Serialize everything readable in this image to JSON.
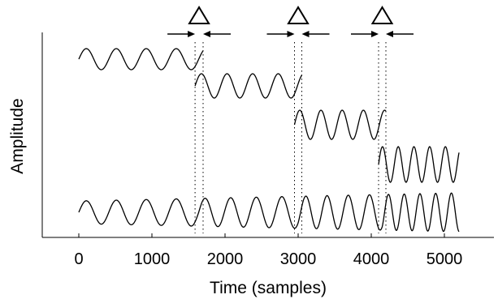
{
  "chart_data": {
    "type": "line",
    "xlabel": "Time (samples)",
    "ylabel": "Amplitude",
    "xlim": [
      -600,
      5700
    ],
    "x_ticks": [
      0,
      1000,
      2000,
      3000,
      4000,
      5000
    ],
    "x_tick_labels": [
      "0",
      "1000",
      "2000",
      "3000",
      "4000",
      "5000"
    ],
    "grid": false,
    "legend": "none",
    "series": [
      {
        "x_start": 0,
        "x_end": 1700,
        "period_samples": 410,
        "row": 1
      },
      {
        "x_start": 1590,
        "x_end": 3050,
        "period_samples": 350,
        "row": 2
      },
      {
        "x_start": 2950,
        "x_end": 4200,
        "period_samples": 290,
        "row": 3
      },
      {
        "x_start": 4100,
        "x_end": 5200,
        "period_samples": 215,
        "row": 4
      },
      {
        "x_start": 0,
        "x_end": 5200,
        "period_samples": "variable (concatenated)",
        "row": 5
      }
    ],
    "overlap_regions": [
      {
        "start": 1590,
        "end": 1700
      },
      {
        "start": 2950,
        "end": 3050
      },
      {
        "start": 4100,
        "end": 4200
      }
    ],
    "annotations": [
      {
        "type": "triangle-marker",
        "count": 3
      },
      {
        "type": "converging-arrows",
        "count": 3
      }
    ]
  }
}
